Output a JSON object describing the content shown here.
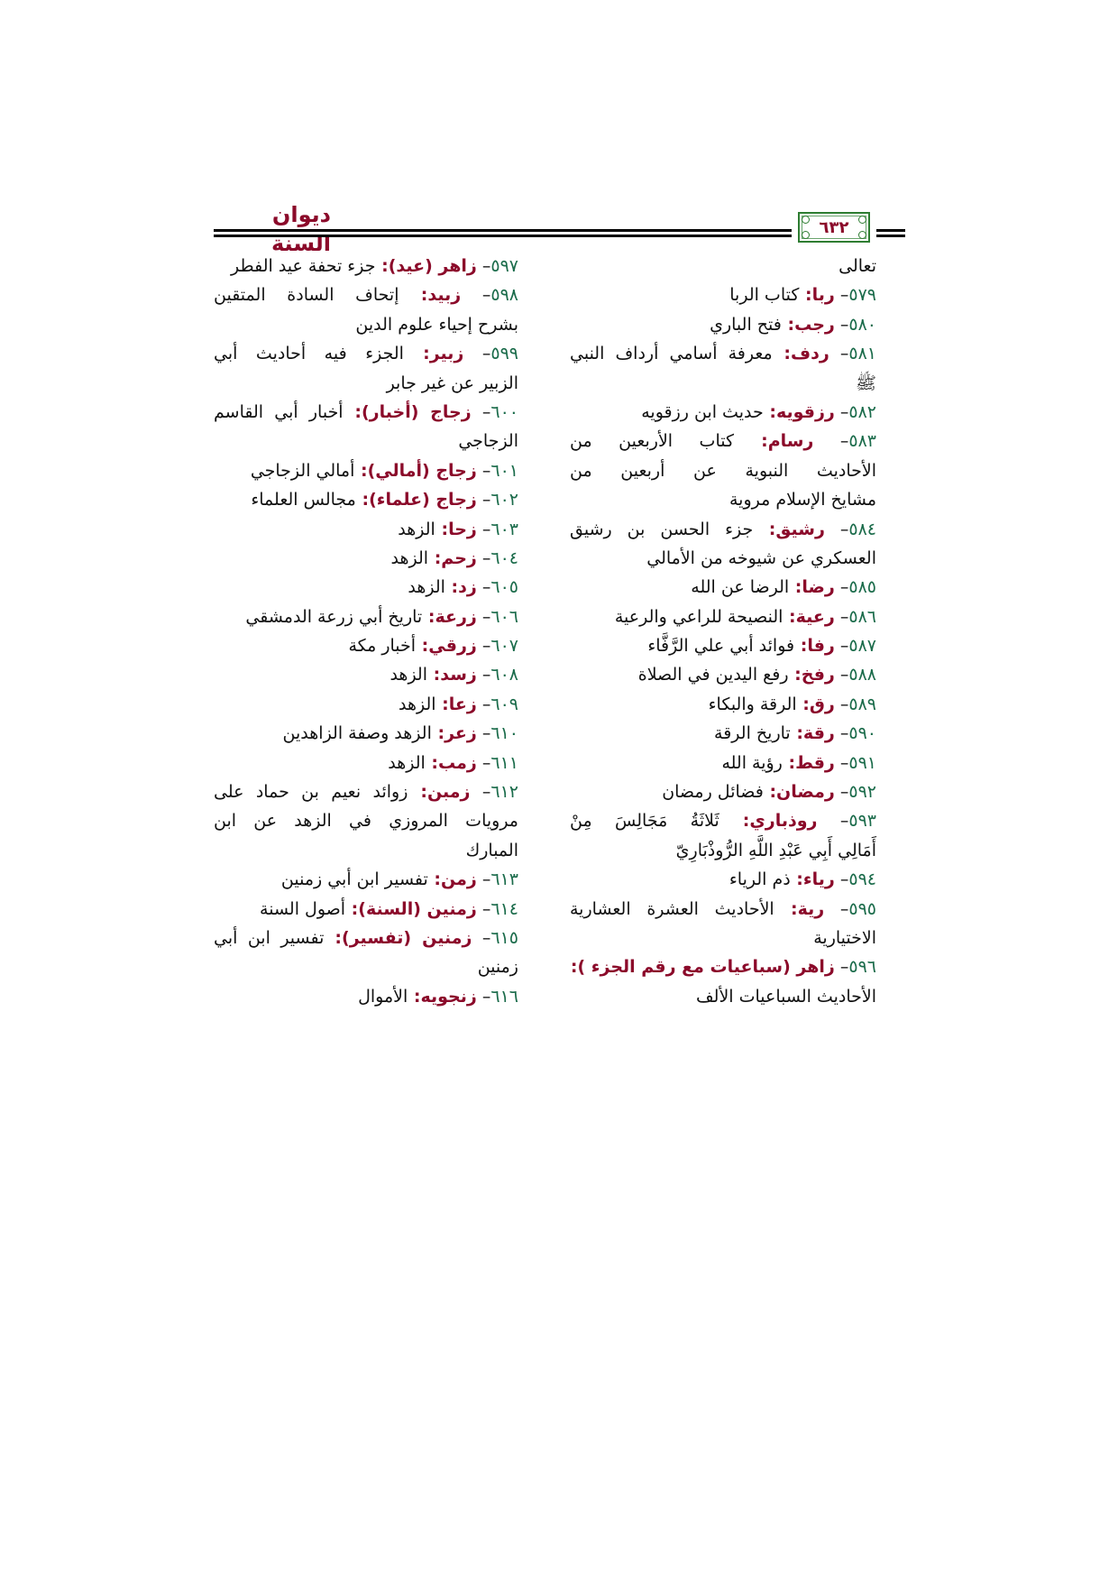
{
  "header": {
    "title": "ديوان السنة",
    "page_number": "٦٣٢"
  },
  "colors": {
    "keyword": "#8b0a2a",
    "number": "#1a6b4a",
    "frame": "#2e7d32"
  },
  "right_column": [
    {
      "text": "تعالى"
    },
    {
      "num": "٥٧٩",
      "key": "ربا",
      "text": "كتاب الربا"
    },
    {
      "num": "٥٨٠",
      "key": "رجب",
      "text": "فتح الباري"
    },
    {
      "num": "٥٨١",
      "key": "ردف",
      "text": "معرفة أسامي أرداف النبي",
      "j": true
    },
    {
      "text": "ﷺ"
    },
    {
      "num": "٥٨٢",
      "key": "رزقويه",
      "text": "حديث ابن رزقويه"
    },
    {
      "num": "٥٨٣",
      "key": "رسام",
      "text": "كتاب الأربعين من",
      "j": true
    },
    {
      "text": "الأحاديث النبوية عن أربعين من",
      "j": true
    },
    {
      "text": "مشايخ الإسلام مروية"
    },
    {
      "num": "٥٨٤",
      "key": "رشيق",
      "text": "جزء الحسن بن رشيق",
      "j": true
    },
    {
      "text": "العسكري عن شيوخه من الأمالي"
    },
    {
      "num": "٥٨٥",
      "key": "رضا",
      "text": "الرضا عن الله"
    },
    {
      "num": "٥٨٦",
      "key": "رعية",
      "text": "النصيحة للراعي والرعية"
    },
    {
      "num": "٥٨٧",
      "key": "رفا",
      "text": "فوائد أبي علي الرَّفَّاء"
    },
    {
      "num": "٥٨٨",
      "key": "رفخ",
      "text": "رفع اليدين في الصلاة"
    },
    {
      "num": "٥٨٩",
      "key": "رق",
      "text": "الرقة والبكاء"
    },
    {
      "num": "٥٩٠",
      "key": "رقة",
      "text": "تاريخ الرقة"
    },
    {
      "num": "٥٩١",
      "key": "رقط",
      "text": "رؤية الله"
    },
    {
      "num": "٥٩٢",
      "key": "رمضان",
      "text": "فضائل رمضان"
    },
    {
      "num": "٥٩٣",
      "key": "روذباري",
      "text": "ثَلاثَةُ مَجَالِسَ مِنْ",
      "j": true
    },
    {
      "text": "أَمَالِي أَبِي عَبْدِ اللَّهِ الرُّوذْبَارِيّ"
    },
    {
      "num": "٥٩٤",
      "key": "رياء",
      "text": "ذم الرياء"
    },
    {
      "num": "٥٩٥",
      "key": "رية",
      "text": "الأحاديث العشرة العشارية",
      "j": true
    },
    {
      "text": "الاختيارية"
    },
    {
      "num": "٥٩٦",
      "key": "زاهر (سباعيات مع رقم الجزء )",
      "text": ""
    },
    {
      "text": "الأحاديث السباعيات الألف"
    }
  ],
  "left_column": [
    {
      "num": "٥٩٧",
      "key": "زاهر (عيد)",
      "text": "جزء تحفة عيد الفطر"
    },
    {
      "num": "٥٩٨",
      "key": "زبيد",
      "text": "إتحاف السادة المتقين",
      "j": true
    },
    {
      "text": "بشرح إحياء علوم الدين"
    },
    {
      "num": "٥٩٩",
      "key": "زبير",
      "text": "الجزء فيه أحاديث أبي",
      "j": true
    },
    {
      "text": "الزبير عن غير جابر"
    },
    {
      "num": "٦٠٠",
      "key": "زجاج (أخبار)",
      "text": "أخبار أبي القاسم",
      "j": true
    },
    {
      "text": "الزجاجي"
    },
    {
      "num": "٦٠١",
      "key": "زجاج (أمالي)",
      "text": "أمالي الزجاجي"
    },
    {
      "num": "٦٠٢",
      "key": "زجاج (علماء)",
      "text": "مجالس العلماء"
    },
    {
      "num": "٦٠٣",
      "key": "زحا",
      "text": "الزهد"
    },
    {
      "num": "٦٠٤",
      "key": "زحم",
      "text": "الزهد"
    },
    {
      "num": "٦٠٥",
      "key": "زد",
      "text": "الزهد"
    },
    {
      "num": "٦٠٦",
      "key": "زرعة",
      "text": "تاريخ أبي زرعة الدمشقي"
    },
    {
      "num": "٦٠٧",
      "key": "زرقي",
      "text": "أخبار مكة"
    },
    {
      "num": "٦٠٨",
      "key": "زسد",
      "text": "الزهد"
    },
    {
      "num": "٦٠٩",
      "key": "زعا",
      "text": "الزهد"
    },
    {
      "num": "٦١٠",
      "key": "زعر",
      "text": "الزهد وصفة الزاهدين"
    },
    {
      "num": "٦١١",
      "key": "زمب",
      "text": "الزهد"
    },
    {
      "num": "٦١٢",
      "key": "زمبن",
      "text": "زوائد نعيم بن حماد على",
      "j": true
    },
    {
      "text": "مرويات المروزي في الزهد عن ابن",
      "j": true
    },
    {
      "text": "المبارك"
    },
    {
      "num": "٦١٣",
      "key": "زمن",
      "text": "تفسير ابن أبي زمنين"
    },
    {
      "num": "٦١٤",
      "key": "زمنين (السنة)",
      "text": "أصول السنة"
    },
    {
      "num": "٦١٥",
      "key": "زمنين (تفسير)",
      "text": "تفسير ابن أبي",
      "j": true
    },
    {
      "text": "زمنين"
    },
    {
      "num": "٦١٦",
      "key": "زنجويه",
      "text": "الأموال"
    }
  ]
}
